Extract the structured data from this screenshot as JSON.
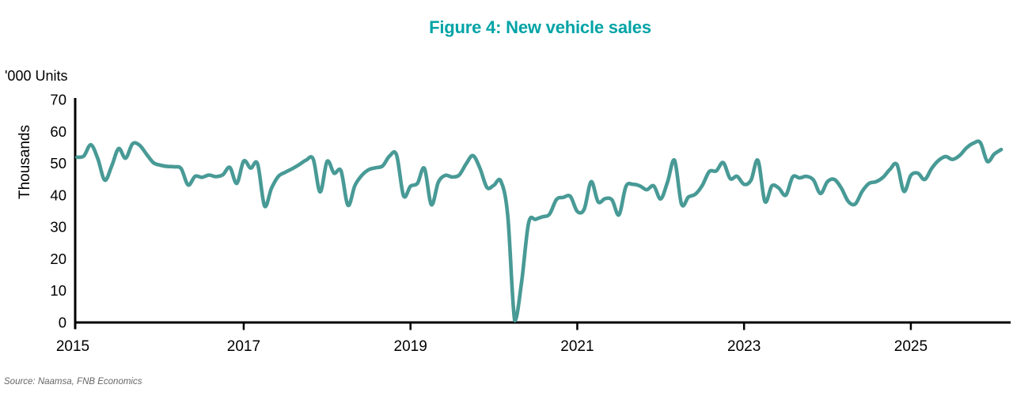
{
  "chart_data": {
    "type": "line",
    "title": "Figure 4: New vehicle sales",
    "units_label": "'000 Units",
    "ylabel": "Thousands",
    "source": "Source: Naamsa, FNB Economics",
    "series_name": "New vehicle sales",
    "frequency": "monthly",
    "x_range": [
      "2015-01",
      "2026-02"
    ],
    "x_tick_labels": [
      "2015",
      "2017",
      "2019",
      "2021",
      "2023",
      "2025"
    ],
    "y_ticks": [
      0,
      10,
      20,
      30,
      40,
      50,
      60,
      70
    ],
    "ylim": [
      0,
      70
    ],
    "grid": false,
    "legend_position": "none",
    "colors": {
      "line": "#489A96",
      "title": "#00A3A6",
      "axis": "#000000",
      "source": "#666666"
    },
    "values_by_year": {
      "2015": [
        51.9,
        52.3,
        55.8,
        51.5,
        44.7,
        49.1,
        54.6,
        51.6,
        56.1,
        55.7,
        52.9,
        50.2
      ],
      "2016": [
        49.4,
        49.0,
        48.9,
        48.3,
        43.2,
        45.9,
        45.6,
        46.3,
        45.8,
        46.4,
        48.7,
        43.7
      ],
      "2017": [
        50.7,
        48.5,
        49.8,
        36.6,
        42.2,
        45.9,
        47.2,
        48.3,
        49.6,
        51.0,
        51.3,
        41.0
      ],
      "2018": [
        50.6,
        46.9,
        47.6,
        36.8,
        43.0,
        46.2,
        48.0,
        48.6,
        49.2,
        52.3,
        52.6,
        39.8
      ],
      "2019": [
        42.8,
        43.7,
        48.4,
        37.0,
        44.0,
        46.2,
        45.7,
        46.3,
        49.8,
        52.4,
        48.4,
        42.4
      ],
      "2020": [
        43.1,
        44.4,
        33.5,
        0.6,
        12.9,
        31.3,
        32.4,
        33.2,
        34.0,
        38.6,
        39.3,
        39.6
      ],
      "2021": [
        34.9,
        35.6,
        44.2,
        37.9,
        38.9,
        38.5,
        33.8,
        42.7,
        43.4,
        42.9,
        41.7,
        42.9
      ],
      "2022": [
        38.8,
        44.2,
        50.9,
        37.2,
        39.4,
        40.3,
        43.1,
        47.4,
        47.6,
        50.2,
        45.2,
        45.9
      ],
      "2023": [
        43.4,
        44.7,
        50.9,
        38.0,
        42.9,
        42.2,
        40.0,
        45.7,
        45.4,
        45.9,
        44.7,
        40.5
      ],
      "2024": [
        44.2,
        44.9,
        42.2,
        38.0,
        37.2,
        41.2,
        43.7,
        44.2,
        45.6,
        48.1,
        49.6,
        41.2
      ],
      "2025": [
        46.2,
        46.9,
        44.9,
        48.4,
        50.9,
        52.1,
        51.2,
        52.4,
        54.8,
        56.3,
        56.5,
        50.6
      ],
      "2026": [
        52.9,
        54.3
      ]
    }
  }
}
